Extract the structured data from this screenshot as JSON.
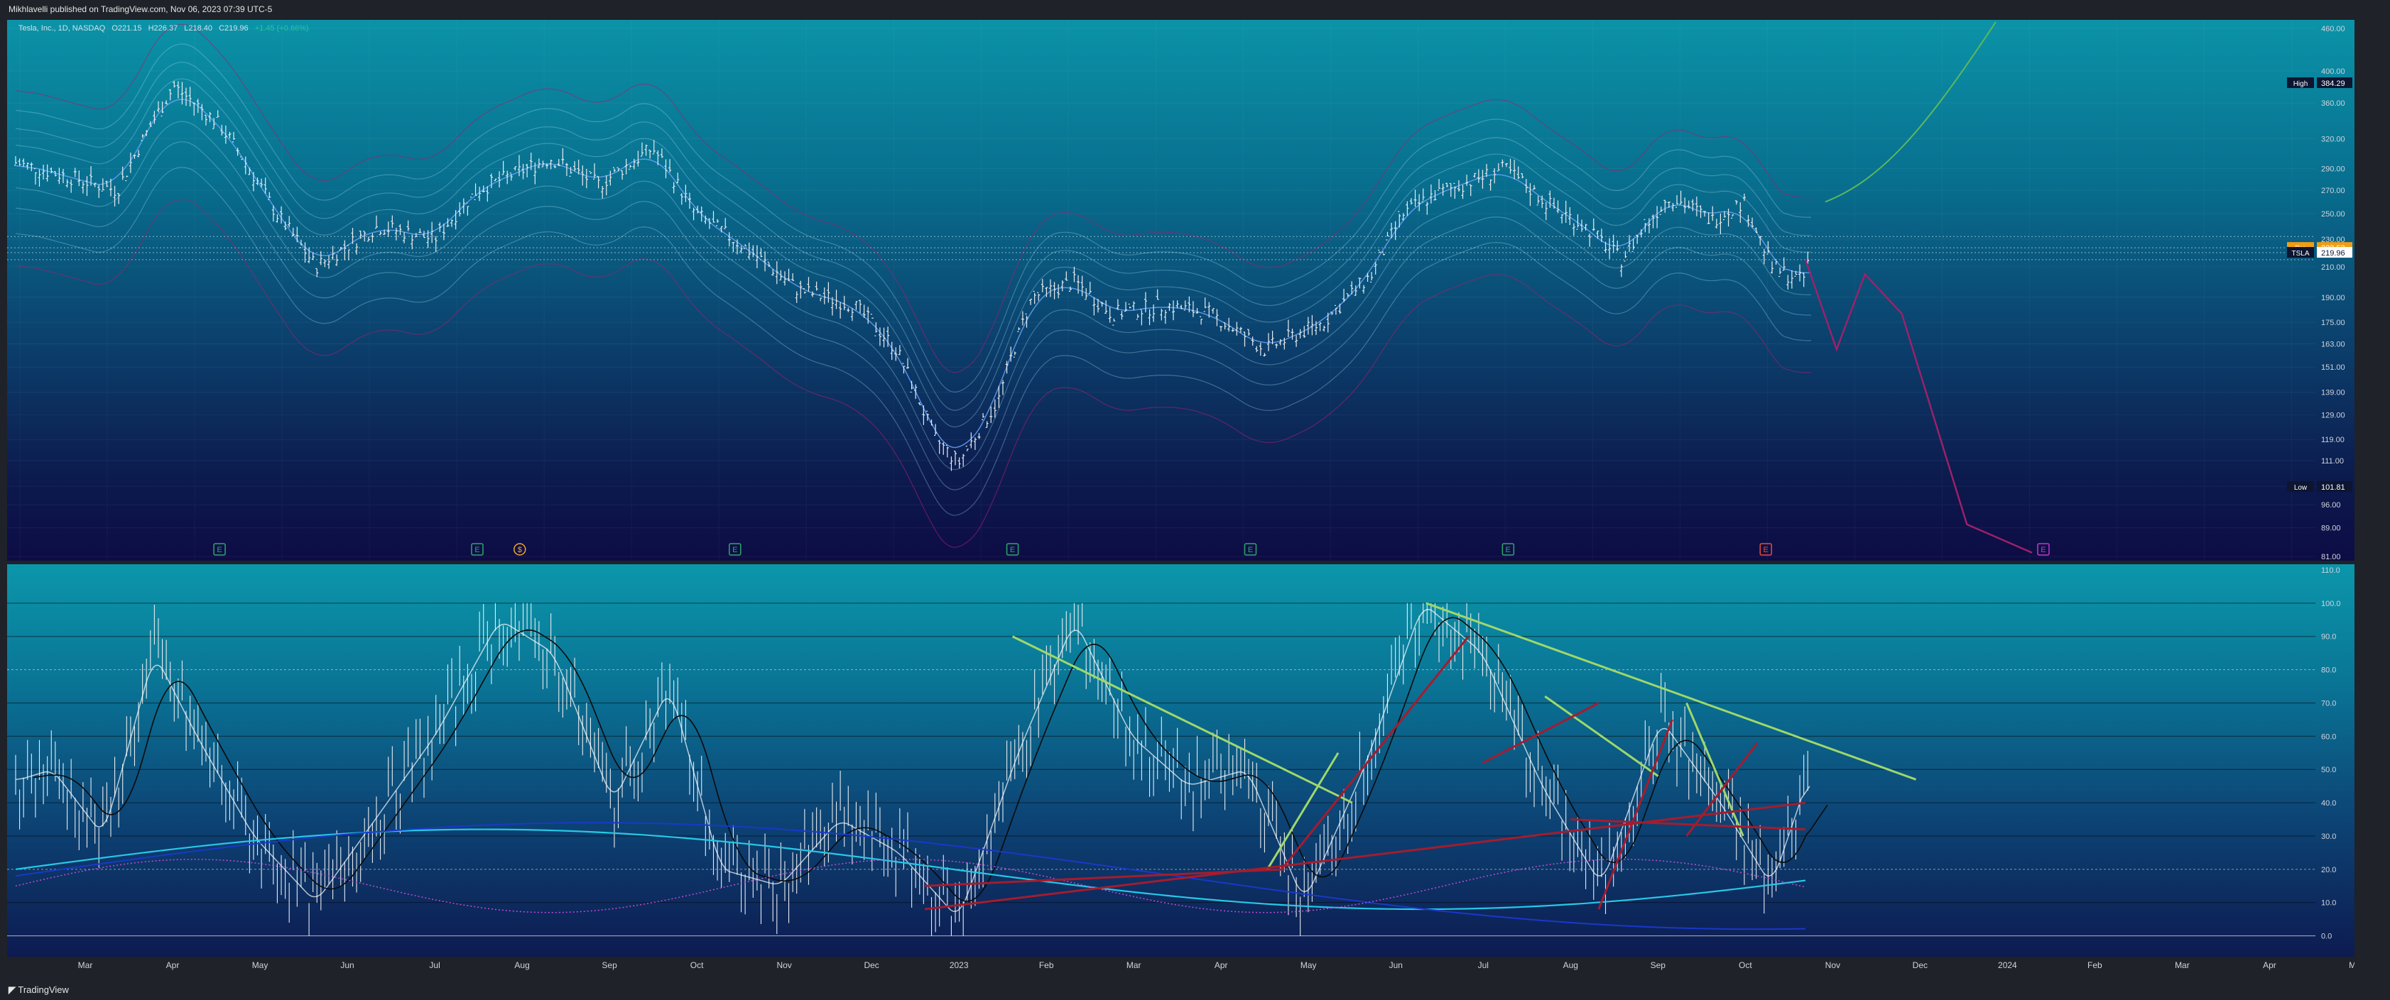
{
  "header": {
    "published": "Mikhlavelli published on TradingView.com, Nov 06, 2023 07:39 UTC-5"
  },
  "legend": {
    "symbol": "Tesla, Inc., 1D, NASDAQ",
    "open": "O221.15",
    "high": "H226.37",
    "low": "L218.40",
    "close": "C219.96",
    "change": "+1.45 (+0.66%)"
  },
  "footer": {
    "brand": "TradingView"
  },
  "colors": {
    "price_bars": "#e8ecef",
    "ribbon": "#9ad8ec",
    "magenta": "#a0206a",
    "green_trend": "#9fd86a",
    "red_trend": "#a51c2e",
    "cyan_ma": "#27c8e6",
    "blue_ma": "#1a38c8",
    "pre_tag": "#f39c12"
  },
  "chart_data": [
    {
      "type": "line",
      "title": "Tesla, Inc., 1D, NASDAQ",
      "y_scale": "log",
      "ylim": [
        81,
        460
      ],
      "y_ticks": [
        "460.00",
        "400.00",
        "360.00",
        "320.00",
        "290.00",
        "270.00",
        "250.00",
        "230.00",
        "210.00",
        "190.00",
        "175.00",
        "163.00",
        "151.00",
        "139.00",
        "129.00",
        "119.00",
        "111.00",
        "102.00",
        "96.00",
        "89.00",
        "81.00"
      ],
      "series": [
        {
          "values_note": "daily close (approx)",
          "x": [
            "2022-02-01",
            "2022-03-01",
            "2022-03-15",
            "2022-04-04",
            "2022-04-20",
            "2022-05-10",
            "2022-05-24",
            "2022-06-15",
            "2022-07-05",
            "2022-07-20",
            "2022-08-15",
            "2022-09-01",
            "2022-09-20",
            "2022-10-05",
            "2022-10-25",
            "2022-11-10",
            "2022-11-30",
            "2022-12-15",
            "2022-12-28",
            "2023-01-06",
            "2023-01-20",
            "2023-02-01",
            "2023-02-16",
            "2023-03-01",
            "2023-03-20",
            "2023-04-05",
            "2023-04-24",
            "2023-05-15",
            "2023-06-01",
            "2023-06-12",
            "2023-06-22",
            "2023-07-18",
            "2023-08-01",
            "2023-08-15",
            "2023-08-28",
            "2023-09-14",
            "2023-09-29",
            "2023-10-10",
            "2023-10-20",
            "2023-10-31",
            "2023-11-03"
          ],
          "values": [
            300,
            280,
            270,
            380,
            335,
            250,
            210,
            240,
            230,
            270,
            300,
            275,
            310,
            250,
            220,
            195,
            185,
            160,
            120,
            110,
            135,
            190,
            200,
            180,
            185,
            180,
            160,
            175,
            205,
            250,
            265,
            290,
            260,
            240,
            215,
            265,
            245,
            260,
            210,
            200,
            220
          ]
        }
      ],
      "markers": {
        "events": [
          "E",
          "E",
          "$",
          "E",
          "E",
          "E",
          "E",
          "E",
          "E"
        ]
      },
      "price_labels": [
        {
          "label": "High",
          "value": "384.29"
        },
        {
          "label": "Pre",
          "value": "223.53"
        },
        {
          "label": "TSLA",
          "value": "219.96"
        },
        {
          "label": "Low",
          "value": "101.81"
        }
      ],
      "x_labels": [
        "Mar",
        "Apr",
        "May",
        "Jun",
        "Jul",
        "Aug",
        "Sep",
        "Oct",
        "Nov",
        "Dec",
        "2023",
        "Feb",
        "Mar",
        "Apr",
        "May",
        "Jun",
        "Jul",
        "Aug",
        "Sep",
        "Oct",
        "Nov",
        "Dec",
        "2024",
        "Feb",
        "Mar",
        "Apr",
        "May"
      ]
    },
    {
      "type": "line",
      "ylim": [
        -5,
        110
      ],
      "y_ticks": [
        "110.0",
        "100.0",
        "90.0",
        "80.0",
        "70.0",
        "60.0",
        "50.0",
        "40.0",
        "30.0",
        "20.0",
        "10.0",
        "0.0"
      ],
      "grid_lines": [
        100,
        90,
        70,
        60,
        50,
        40,
        30,
        10,
        0
      ],
      "dashed_levels": [
        80,
        20
      ],
      "series": [
        {
          "values_note": "oscillator (approx)",
          "x": [
            "2022-02-01",
            "2022-02-20",
            "2022-03-10",
            "2022-03-28",
            "2022-04-12",
            "2022-05-02",
            "2022-05-24",
            "2022-06-14",
            "2022-07-05",
            "2022-07-28",
            "2022-08-16",
            "2022-09-06",
            "2022-09-26",
            "2022-10-14",
            "2022-11-04",
            "2022-11-25",
            "2022-12-16",
            "2023-01-06",
            "2023-01-27",
            "2023-02-16",
            "2023-03-08",
            "2023-03-28",
            "2023-04-18",
            "2023-05-08",
            "2023-05-29",
            "2023-06-19",
            "2023-07-10",
            "2023-07-31",
            "2023-08-21",
            "2023-09-11",
            "2023-10-02",
            "2023-10-20",
            "2023-11-03"
          ],
          "values": [
            45,
            50,
            30,
            85,
            60,
            30,
            10,
            35,
            60,
            95,
            85,
            40,
            75,
            20,
            15,
            35,
            25,
            5,
            55,
            95,
            60,
            45,
            50,
            10,
            50,
            100,
            85,
            45,
            15,
            65,
            40,
            15,
            50
          ]
        }
      ],
      "x_labels": [
        "Mar",
        "Apr",
        "May",
        "Jun",
        "Jul",
        "Aug",
        "Sep",
        "Oct",
        "Nov",
        "Dec",
        "2023",
        "Feb",
        "Mar",
        "Apr",
        "May",
        "Jun",
        "Jul",
        "Aug",
        "Sep",
        "Oct",
        "Nov",
        "Dec",
        "2024",
        "Feb",
        "Mar",
        "Apr",
        "May"
      ]
    }
  ]
}
